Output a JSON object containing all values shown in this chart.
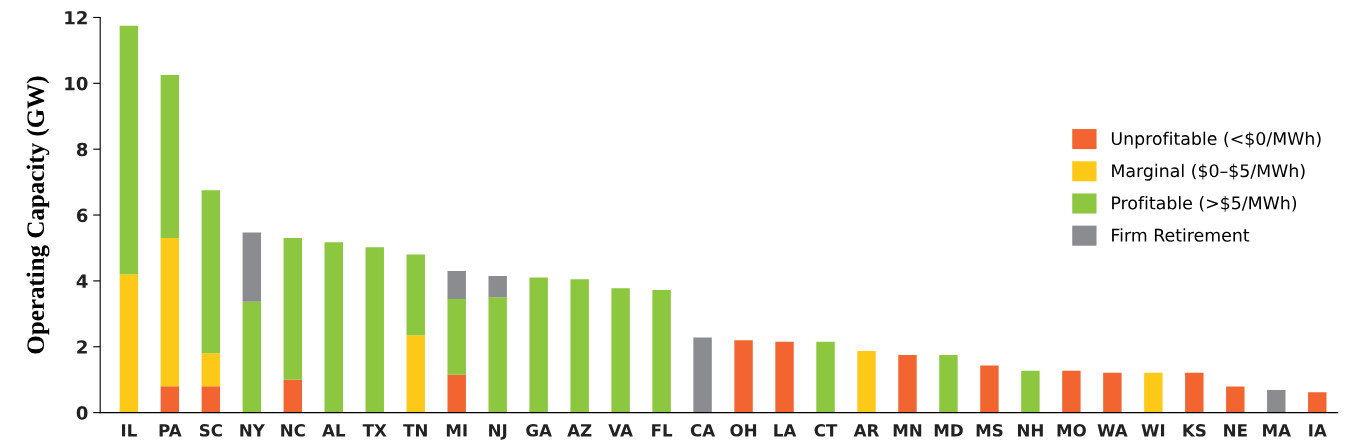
{
  "chart_data": {
    "type": "bar",
    "stacked": true,
    "ylabel": "Operating Capacity (GW)",
    "categories": [
      "IL",
      "PA",
      "SC",
      "NY",
      "NC",
      "AL",
      "TX",
      "TN",
      "MI",
      "NJ",
      "GA",
      "AZ",
      "VA",
      "FL",
      "CA",
      "OH",
      "LA",
      "CT",
      "AR",
      "MN",
      "MD",
      "MS",
      "NH",
      "MO",
      "WA",
      "WI",
      "KS",
      "NE",
      "MA",
      "IA"
    ],
    "series": [
      {
        "name": "Unprofitable (<$0/MWh)",
        "color": "#f26531",
        "values": [
          null,
          0.8,
          0.8,
          null,
          1.0,
          null,
          null,
          null,
          1.15,
          null,
          null,
          null,
          null,
          null,
          null,
          2.2,
          2.15,
          null,
          null,
          1.75,
          null,
          1.43,
          null,
          1.27,
          1.21,
          null,
          1.21,
          0.79,
          null,
          0.62
        ]
      },
      {
        "name": "Marginal ($0–$5/MWh)",
        "color": "#fdc918",
        "values": [
          4.2,
          4.5,
          1.0,
          null,
          null,
          null,
          null,
          2.35,
          null,
          null,
          null,
          null,
          null,
          null,
          null,
          null,
          null,
          null,
          1.87,
          null,
          null,
          null,
          null,
          null,
          null,
          1.21,
          null,
          null,
          null,
          null
        ]
      },
      {
        "name": "Profitable (>$5/MWh)",
        "color": "#8dc63f",
        "values": [
          7.55,
          4.95,
          4.95,
          3.37,
          4.3,
          5.17,
          5.02,
          2.45,
          2.3,
          3.5,
          4.1,
          4.05,
          3.78,
          3.72,
          null,
          null,
          null,
          2.15,
          null,
          null,
          1.75,
          null,
          1.27,
          null,
          null,
          null,
          null,
          null,
          null,
          null
        ]
      },
      {
        "name": "Firm Retirement",
        "color": "#8a8c8f",
        "values": [
          null,
          null,
          null,
          2.1,
          null,
          null,
          null,
          null,
          0.85,
          0.65,
          null,
          null,
          null,
          null,
          2.28,
          null,
          null,
          null,
          null,
          null,
          null,
          null,
          null,
          null,
          null,
          null,
          null,
          null,
          0.69,
          null
        ]
      }
    ],
    "ylim": [
      0,
      12
    ],
    "yticks": [
      0,
      2,
      4,
      6,
      8,
      10,
      12
    ],
    "grid": false,
    "legend": "right"
  }
}
